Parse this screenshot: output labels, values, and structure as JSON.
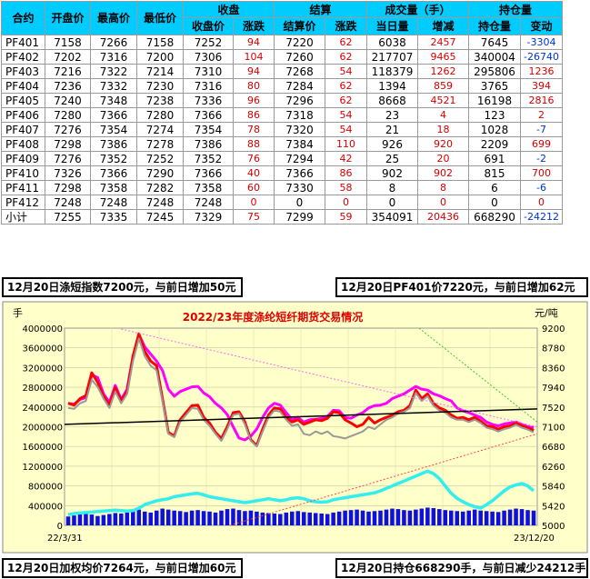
{
  "table": {
    "head_groups": {
      "contract": "合约",
      "open": "开盘价",
      "high": "最高价",
      "low": "最低价",
      "close": "收盘",
      "settle": "结算",
      "volume": "成交量（手）",
      "oi": "持仓量"
    },
    "head_sub": {
      "close_price": "收盘价",
      "close_chg": "涨跌",
      "settle_price": "结算价",
      "settle_chg": "涨跌",
      "vol_day": "当日量",
      "vol_chg": "增减",
      "oi_amt": "持仓量",
      "oi_chg": "变动"
    },
    "rows": [
      [
        "PF401",
        "7158",
        "7266",
        "7158",
        "7252",
        "94",
        "7220",
        "62",
        "6038",
        "2457",
        "7645",
        "-3304"
      ],
      [
        "PF402",
        "7202",
        "7316",
        "7200",
        "7306",
        "104",
        "7260",
        "62",
        "217707",
        "9465",
        "340004",
        "-26740"
      ],
      [
        "PF403",
        "7216",
        "7322",
        "7214",
        "7310",
        "94",
        "7268",
        "54",
        "118379",
        "1262",
        "295806",
        "1236"
      ],
      [
        "PF404",
        "7236",
        "7332",
        "7230",
        "7316",
        "80",
        "7284",
        "62",
        "1394",
        "859",
        "3765",
        "394"
      ],
      [
        "PF405",
        "7240",
        "7348",
        "7238",
        "7336",
        "96",
        "7296",
        "62",
        "8668",
        "4521",
        "16198",
        "2816"
      ],
      [
        "PF406",
        "7280",
        "7366",
        "7280",
        "7366",
        "86",
        "7318",
        "54",
        "23",
        "4",
        "123",
        "2"
      ],
      [
        "PF407",
        "7276",
        "7354",
        "7274",
        "7354",
        "78",
        "7320",
        "54",
        "21",
        "18",
        "1028",
        "-7"
      ],
      [
        "PF408",
        "7298",
        "7386",
        "7278",
        "7386",
        "88",
        "7384",
        "110",
        "926",
        "920",
        "2209",
        "699"
      ],
      [
        "PF409",
        "7276",
        "7352",
        "7252",
        "7352",
        "76",
        "7294",
        "42",
        "25",
        "20",
        "691",
        "-2"
      ],
      [
        "PF410",
        "7326",
        "7366",
        "7290",
        "7366",
        "40",
        "7366",
        "86",
        "902",
        "902",
        "815",
        "700"
      ],
      [
        "PF411",
        "7298",
        "7358",
        "7282",
        "7358",
        "60",
        "7330",
        "58",
        "8",
        "8",
        "6",
        "-6"
      ],
      [
        "PF412",
        "7248",
        "7248",
        "7248",
        "7248",
        "0",
        "0",
        "0",
        "0",
        "0",
        "0",
        "0"
      ],
      [
        "小计",
        "7255",
        "7335",
        "7245",
        "7329",
        "75",
        "7299",
        "59",
        "354091",
        "20436",
        "668290",
        "-24212"
      ]
    ]
  },
  "banners": {
    "top_left": "12月20日涤短指数7200元，与前日增加50元",
    "top_right": "12月20日PF401价7220元，与前日增加62元",
    "bottom_left": "12月20日加权均价7264元，与前日增加60元",
    "bottom_right": "12月20日持仓668290手，与前日减少24212手"
  },
  "chart_data": {
    "type": "line",
    "title": "2022/23年度涤纶短纤期货交易情况",
    "left_unit": "手",
    "right_unit": "元/吨",
    "left_ticks": [
      "0",
      "400000",
      "800000",
      "1200000",
      "1600000",
      "2000000",
      "2400000",
      "2800000",
      "3200000",
      "3600000",
      "4000000"
    ],
    "left_range": [
      0,
      4000000
    ],
    "right_ticks": [
      "5000",
      "5420",
      "5840",
      "6260",
      "6680",
      "7100",
      "7520",
      "7940",
      "8360",
      "8780",
      "9200"
    ],
    "right_range": [
      5000,
      9200
    ],
    "x_labels": [
      "22/3/31",
      "23/12/20"
    ],
    "grid": true,
    "series": [
      {
        "axis": "right",
        "color": "#ff00ff",
        "values": [
          7600,
          7580,
          7680,
          7720,
          8200,
          8150,
          7800,
          7620,
          7980,
          7680,
          7900,
          8600,
          9060,
          8800,
          8650,
          8500,
          8300,
          7900,
          7750,
          7850,
          7900,
          7950,
          7960,
          7820,
          7740,
          7600,
          7500,
          7360,
          7100,
          6860,
          6820,
          6900,
          7050,
          7300,
          7500,
          7600,
          7560,
          7400,
          7250,
          7300,
          7200,
          7250,
          7260,
          7280,
          7320,
          7450,
          7440,
          7300,
          7280,
          7350,
          7400,
          7500,
          7550,
          7560,
          7600,
          7700,
          7750,
          7800,
          7880,
          7960,
          7900,
          7880,
          7800,
          7760,
          7700,
          7650,
          7500,
          7440,
          7400,
          7350,
          7300,
          7200,
          7150,
          7120,
          7160,
          7180,
          7200,
          7150,
          7100,
          7080
        ]
      },
      {
        "axis": "right",
        "color": "#ff0000",
        "values": [
          7600,
          7560,
          7700,
          7760,
          8250,
          8050,
          7750,
          7560,
          7930,
          7650,
          7850,
          8600,
          9080,
          8700,
          8500,
          8400,
          7700,
          6980,
          6900,
          7250,
          7400,
          7550,
          7560,
          7300,
          7180,
          6980,
          6850,
          7100,
          7400,
          7420,
          7200,
          6820,
          6700,
          7050,
          7350,
          7500,
          7480,
          7300,
          7200,
          7250,
          7150,
          7200,
          7250,
          7230,
          7280,
          7420,
          7400,
          7250,
          7180,
          7100,
          7150,
          7300,
          7180,
          7250,
          7300,
          7350,
          7420,
          7450,
          7550,
          7880,
          7700,
          7800,
          7600,
          7500,
          7450,
          7350,
          7280,
          7300,
          7250,
          7300,
          7220,
          7120,
          7100,
          7050,
          7100,
          7120,
          7180,
          7120,
          7080,
          7020
        ]
      },
      {
        "axis": "right",
        "color": "#999999",
        "values": [
          7500,
          7480,
          7600,
          7650,
          8100,
          7950,
          7700,
          7500,
          7850,
          7600,
          7800,
          8500,
          8980,
          8600,
          8400,
          8300,
          7650,
          6950,
          6880,
          7200,
          7350,
          7500,
          7480,
          7250,
          7120,
          6950,
          6800,
          7050,
          7350,
          7380,
          7150,
          6800,
          6680,
          7000,
          7300,
          7450,
          7420,
          7250,
          7120,
          7150,
          6950,
          6920,
          7000,
          6950,
          7000,
          6900,
          6880,
          6850,
          6900,
          6950,
          7000,
          7100,
          7050,
          7150,
          7250,
          7300,
          7380,
          7420,
          7500,
          7820,
          7650,
          7750,
          7550,
          7450,
          7400,
          7300,
          7250,
          7250,
          7200,
          7250,
          7180,
          7080,
          7050,
          7000,
          7050,
          7080,
          7140,
          7080,
          7040,
          6980
        ]
      },
      {
        "axis": "left",
        "color": "#33eeee",
        "values": [
          220000,
          240000,
          250000,
          260000,
          270000,
          280000,
          290000,
          300000,
          310000,
          300000,
          290000,
          300000,
          350000,
          420000,
          460000,
          500000,
          520000,
          540000,
          580000,
          600000,
          620000,
          640000,
          650000,
          620000,
          580000,
          560000,
          540000,
          520000,
          500000,
          480000,
          460000,
          480000,
          500000,
          520000,
          540000,
          520000,
          500000,
          520000,
          550000,
          560000,
          540000,
          500000,
          480000,
          470000,
          480000,
          520000,
          540000,
          560000,
          580000,
          600000,
          620000,
          640000,
          660000,
          700000,
          750000,
          800000,
          850000,
          900000,
          950000,
          1000000,
          1050000,
          1100000,
          1050000,
          950000,
          800000,
          650000,
          550000,
          480000,
          420000,
          380000,
          350000,
          420000,
          500000,
          600000,
          700000,
          780000,
          820000,
          850000,
          800000,
          700000
        ]
      },
      {
        "axis": "left",
        "color": "#1010dd",
        "kind": "bars",
        "values": [
          180000,
          200000,
          240000,
          260000,
          220000,
          190000,
          210000,
          230000,
          250000,
          240000,
          260000,
          300000,
          320000,
          280000,
          260000,
          300000,
          340000,
          320000,
          300000,
          290000,
          270000,
          300000,
          310000,
          290000,
          280000,
          260000,
          300000,
          330000,
          340000,
          310000,
          290000,
          300000,
          280000,
          260000,
          250000,
          240000,
          230000,
          260000,
          280000,
          290000,
          270000,
          260000,
          250000,
          240000,
          230000,
          260000,
          280000,
          300000,
          310000,
          320000,
          300000,
          280000,
          290000,
          300000,
          320000,
          340000,
          330000,
          310000,
          300000,
          320000,
          340000,
          360000,
          350000,
          330000,
          310000,
          300000,
          290000,
          280000,
          300000,
          320000,
          300000,
          290000,
          280000,
          270000,
          300000,
          320000,
          340000,
          330000,
          310000,
          300000
        ]
      }
    ],
    "trend_lines": [
      {
        "color": "#000000",
        "from": [
          0,
          7150
        ],
        "to": [
          1,
          7480
        ]
      },
      {
        "color": "#ff66ff",
        "from": [
          0.12,
          9180
        ],
        "to": [
          1,
          7100
        ]
      },
      {
        "color": "#ff4444",
        "from": [
          0.35,
          5000
        ],
        "to": [
          1,
          6950
        ]
      },
      {
        "color": "#33cc33",
        "from": [
          0.75,
          9200
        ],
        "to": [
          1,
          7200
        ]
      }
    ]
  }
}
